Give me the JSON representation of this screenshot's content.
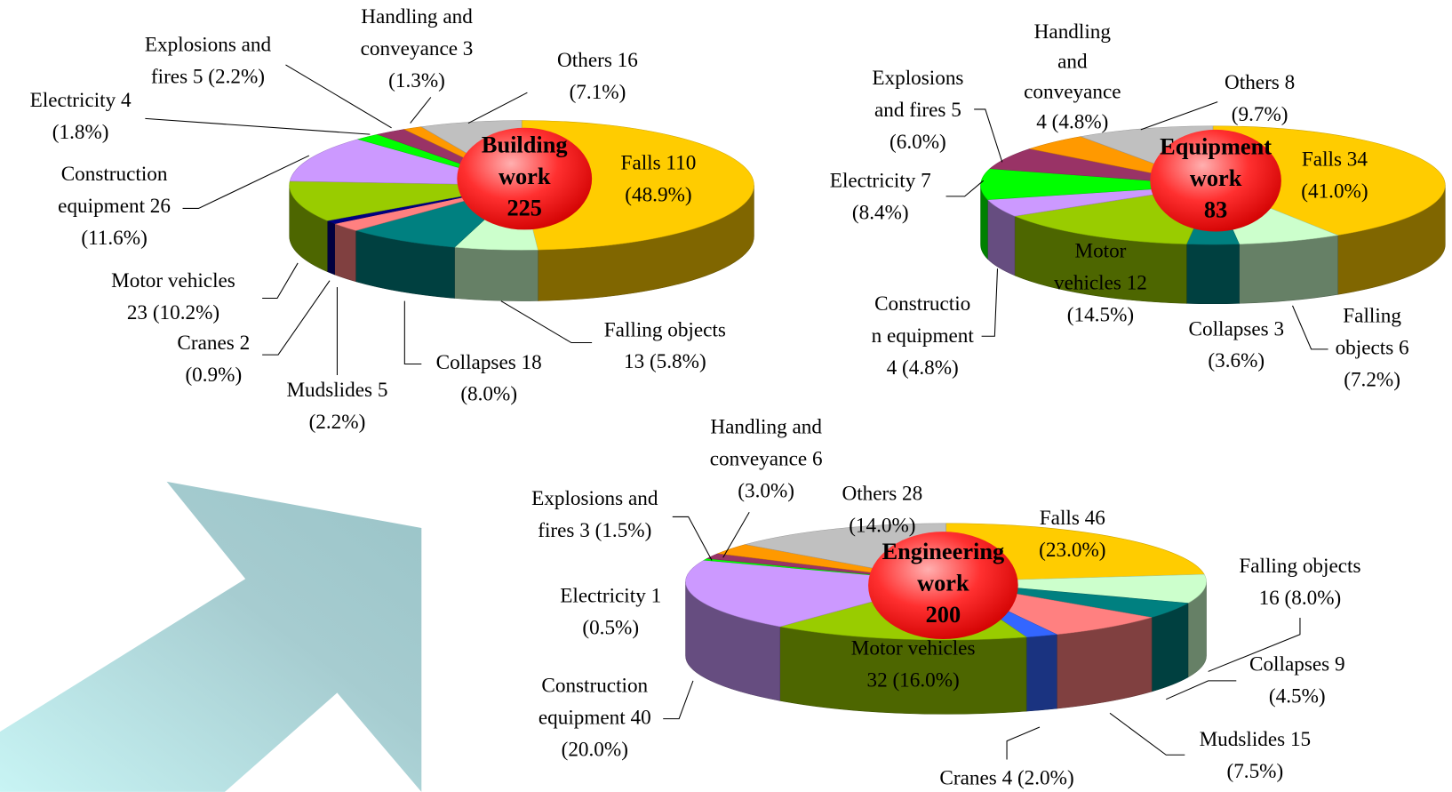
{
  "chart_data": [
    {
      "type": "pie",
      "title": [
        "Building",
        "work",
        "225"
      ],
      "labels": [
        [
          "Falls 110",
          "(48.9%)"
        ],
        [
          "Falling objects",
          "13 (5.8%)"
        ],
        [
          "Collapses 18",
          "(8.0%)"
        ],
        [
          "Mudslides 5",
          "(2.2%)"
        ],
        [
          "Cranes 2",
          "(0.9%)"
        ],
        [
          "Motor vehicles",
          "23 (10.2%)"
        ],
        [
          "Construction",
          "equipment 26",
          "(11.6%)"
        ],
        [
          "Electricity 4",
          "(1.8%)"
        ],
        [
          "Explosions and",
          "fires 5 (2.2%)"
        ],
        [
          "Handling and",
          "conveyance 3",
          "(1.3%)"
        ],
        [
          "Others 16",
          "(7.1%)"
        ]
      ],
      "values": [
        110,
        13,
        18,
        5,
        2,
        23,
        26,
        4,
        5,
        3,
        16
      ],
      "colors": [
        "#ffcc00",
        "#ccffcc",
        "#008080",
        "#ff8080",
        "#000080",
        "#99cc00",
        "#cc99ff",
        "#00ff00",
        "#993366",
        "#ff9900",
        "#c0c0c0"
      ]
    },
    {
      "type": "pie",
      "title": [
        "Equipment",
        "work",
        "83"
      ],
      "labels": [
        [
          "Falls 34",
          "(41.0%)"
        ],
        [
          "Falling",
          "objects 6",
          "(7.2%)"
        ],
        [
          "Collapses 3",
          "(3.6%)"
        ],
        [
          "Motor",
          "vehicles 12",
          "(14.5%)"
        ],
        [
          "Constructio",
          "n equipment",
          "4 (4.8%)"
        ],
        [
          "Electricity 7",
          "(8.4%)"
        ],
        [
          "Explosions",
          "and fires 5",
          "(6.0%)"
        ],
        [
          "Handling",
          "and",
          "conveyance",
          "4 (4.8%)"
        ],
        [
          "Others 8",
          "(9.7%)"
        ]
      ],
      "values": [
        34,
        6,
        3,
        12,
        4,
        7,
        5,
        4,
        8
      ],
      "colors": [
        "#ffcc00",
        "#ccffcc",
        "#008080",
        "#99cc00",
        "#cc99ff",
        "#00ff00",
        "#993366",
        "#ff9900",
        "#c0c0c0"
      ]
    },
    {
      "type": "pie",
      "title": [
        "Engineering",
        "work",
        "200"
      ],
      "labels": [
        [
          "Falls 46",
          "(23.0%)"
        ],
        [
          "Falling objects",
          "16 (8.0%)"
        ],
        [
          "Collapses 9",
          "(4.5%)"
        ],
        [
          "Mudslides 15",
          "(7.5%)"
        ],
        [
          "Cranes 4 (2.0%)"
        ],
        [
          "Motor vehicles",
          "32 (16.0%)"
        ],
        [
          "Construction",
          "equipment 40",
          "(20.0%)"
        ],
        [
          "Electricity 1",
          "(0.5%)"
        ],
        [
          "Explosions and",
          "fires 3 (1.5%)"
        ],
        [
          "Handling and",
          "conveyance 6",
          "(3.0%)"
        ],
        [
          "Others 28",
          "(14.0%)"
        ]
      ],
      "values": [
        46,
        16,
        9,
        15,
        4,
        32,
        40,
        1,
        3,
        6,
        28
      ],
      "colors": [
        "#ffcc00",
        "#ccffcc",
        "#008080",
        "#ff8080",
        "#3366ff",
        "#99cc00",
        "#cc99ff",
        "#00ff00",
        "#993366",
        "#ff9900",
        "#c0c0c0"
      ]
    }
  ]
}
